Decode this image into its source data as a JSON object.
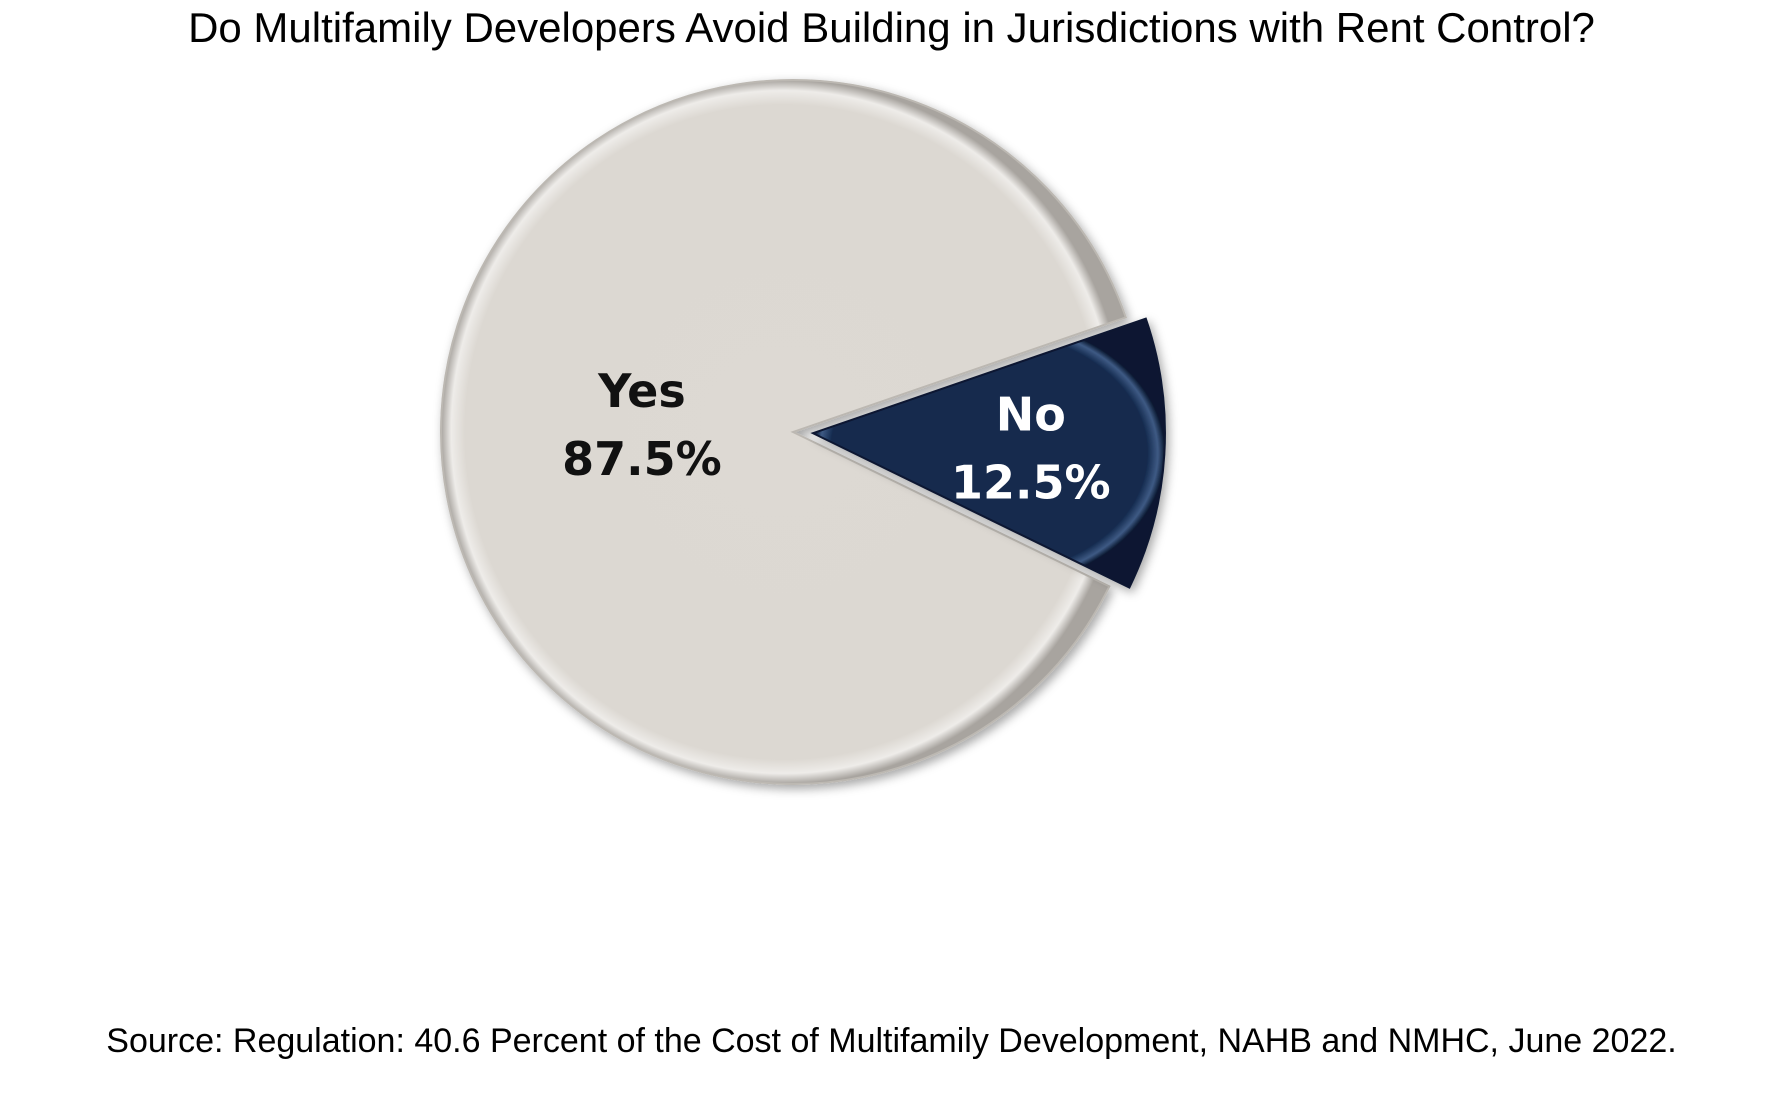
{
  "chart_data": {
    "type": "pie",
    "title": "Do Multifamily Developers Avoid Building in Jurisdictions with Rent Control?",
    "slices": [
      {
        "label": "Yes",
        "value": 87.5,
        "value_label": "87.5%",
        "color": "#ddd9d3",
        "label_color": "#111111"
      },
      {
        "label": "No",
        "value": 12.5,
        "value_label": "12.5%",
        "color": "#142a4e",
        "label_color": "#ffffff"
      }
    ],
    "exploded_slice": "No",
    "legend": "none"
  },
  "source": "Source: Regulation: 40.6 Percent of the Cost of Multifamily Development, NAHB and NMHC, June 2022."
}
